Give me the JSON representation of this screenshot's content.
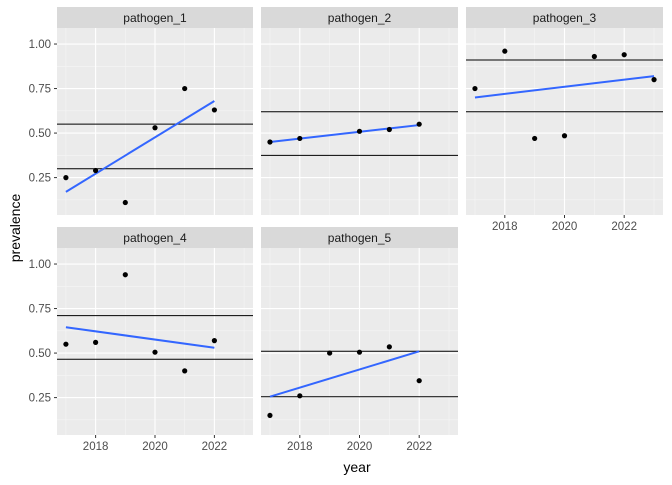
{
  "chart_data": {
    "type": "scatter",
    "facet_layout": "wrap",
    "xlabel": "year",
    "ylabel": "prevalence",
    "xlim": [
      2016.7,
      2023.3
    ],
    "ylim": [
      0.04,
      1.09
    ],
    "x_ticks": [
      2018,
      2020,
      2022
    ],
    "y_ticks": [
      0.25,
      0.5,
      0.75,
      1.0
    ],
    "y_tick_labels": [
      "0.25",
      "0.50",
      "0.75",
      "1.00"
    ],
    "grid": true,
    "colors": {
      "panel_bg": "#ebebeb",
      "strip_bg": "#d9d9d9",
      "grid_major": "#ffffff",
      "point": "#000000",
      "trend_line": "#3366ff",
      "hline": "#000000"
    },
    "panels": [
      {
        "title": "pathogen_1",
        "points": [
          [
            2017,
            0.25
          ],
          [
            2018,
            0.29
          ],
          [
            2019,
            0.11
          ],
          [
            2020,
            0.53
          ],
          [
            2021,
            0.75
          ],
          [
            2022,
            0.63
          ]
        ],
        "trend": [
          [
            2017,
            0.17
          ],
          [
            2022,
            0.68
          ]
        ],
        "hlines": [
          0.3,
          0.55
        ]
      },
      {
        "title": "pathogen_2",
        "points": [
          [
            2017,
            0.45
          ],
          [
            2018,
            0.47
          ],
          [
            2020,
            0.51
          ],
          [
            2021,
            0.52
          ],
          [
            2022,
            0.55
          ]
        ],
        "trend": [
          [
            2017,
            0.45
          ],
          [
            2022,
            0.545
          ]
        ],
        "hlines": [
          0.375,
          0.62
        ]
      },
      {
        "title": "pathogen_3",
        "points": [
          [
            2017,
            0.75
          ],
          [
            2018,
            0.96
          ],
          [
            2019,
            0.47
          ],
          [
            2020,
            0.485
          ],
          [
            2021,
            0.93
          ],
          [
            2022,
            0.94
          ],
          [
            2023,
            0.8
          ]
        ],
        "trend": [
          [
            2017,
            0.7
          ],
          [
            2023,
            0.82
          ]
        ],
        "hlines": [
          0.62,
          0.91
        ]
      },
      {
        "title": "pathogen_4",
        "points": [
          [
            2017,
            0.55
          ],
          [
            2018,
            0.56
          ],
          [
            2019,
            0.94
          ],
          [
            2020,
            0.505
          ],
          [
            2021,
            0.4
          ],
          [
            2022,
            0.57
          ]
        ],
        "trend": [
          [
            2017,
            0.645
          ],
          [
            2022,
            0.53
          ]
        ],
        "hlines": [
          0.465,
          0.71
        ]
      },
      {
        "title": "pathogen_5",
        "points": [
          [
            2017,
            0.15
          ],
          [
            2018,
            0.26
          ],
          [
            2019,
            0.5
          ],
          [
            2020,
            0.505
          ],
          [
            2021,
            0.535
          ],
          [
            2022,
            0.345
          ]
        ],
        "trend": [
          [
            2017,
            0.255
          ],
          [
            2022,
            0.51
          ]
        ],
        "hlines": [
          0.255,
          0.51
        ]
      }
    ]
  }
}
